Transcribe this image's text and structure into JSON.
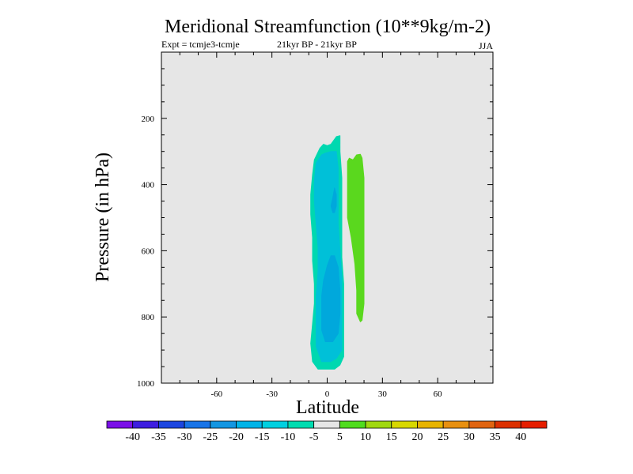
{
  "chart_data": {
    "type": "contour",
    "title": "Meridional Streamfunction (10**9kg/m-2)",
    "subtitle_left": "Expt = tcmje3-tcmje",
    "subtitle_center": "21kyr BP - 21kyr BP",
    "subtitle_right": "JJA",
    "xlabel": "Latitude",
    "ylabel": "Pressure (in hPa)",
    "xlim": [
      -90,
      90
    ],
    "ylim": [
      1000,
      0
    ],
    "x_ticks": [
      -60,
      -30,
      0,
      30,
      60
    ],
    "y_ticks": [
      200,
      400,
      600,
      800,
      1000
    ],
    "x_tick_labels": [
      "-60",
      "-30",
      "0",
      "30",
      "60"
    ],
    "y_tick_labels": [
      "200",
      "400",
      "600",
      "800",
      "1000"
    ],
    "background_color": "#e6e6e6",
    "regions": [
      {
        "level": "-10 to -5",
        "color": "#00d8b0",
        "polygon": [
          [
            -5,
            958
          ],
          [
            -8,
            935
          ],
          [
            -9,
            880
          ],
          [
            -8,
            820
          ],
          [
            -7,
            760
          ],
          [
            -7,
            700
          ],
          [
            -8,
            630
          ],
          [
            -8,
            560
          ],
          [
            -9,
            490
          ],
          [
            -9,
            430
          ],
          [
            -8,
            370
          ],
          [
            -7,
            325
          ],
          [
            -4,
            290
          ],
          [
            -2,
            278
          ],
          [
            0,
            282
          ],
          [
            2,
            278
          ],
          [
            5,
            255
          ],
          [
            7,
            252
          ],
          [
            7,
            300
          ],
          [
            8,
            380
          ],
          [
            8,
            460
          ],
          [
            8,
            540
          ],
          [
            8,
            620
          ],
          [
            9,
            700
          ],
          [
            9,
            780
          ],
          [
            9,
            860
          ],
          [
            9,
            920
          ],
          [
            7,
            945
          ],
          [
            4,
            958
          ]
        ]
      },
      {
        "level": "-15 to -10",
        "color": "#00c0d8",
        "polygon": [
          [
            -3,
            935
          ],
          [
            -6,
            890
          ],
          [
            -6,
            820
          ],
          [
            -6,
            740
          ],
          [
            -5,
            660
          ],
          [
            -5,
            590
          ],
          [
            -6,
            520
          ],
          [
            -7,
            450
          ],
          [
            -7,
            390
          ],
          [
            -6,
            335
          ],
          [
            -3,
            310
          ],
          [
            -1,
            305
          ],
          [
            2,
            300
          ],
          [
            5,
            300
          ],
          [
            6,
            350
          ],
          [
            6,
            450
          ],
          [
            6,
            520
          ],
          [
            7,
            600
          ],
          [
            8,
            680
          ],
          [
            8,
            760
          ],
          [
            8,
            840
          ],
          [
            8,
            900
          ],
          [
            5,
            925
          ],
          [
            2,
            935
          ]
        ]
      },
      {
        "level": "-20 to -15",
        "color": "#00a8dc",
        "polygon": [
          [
            -1,
            875
          ],
          [
            -3,
            840
          ],
          [
            -3,
            790
          ],
          [
            -3,
            735
          ],
          [
            -2,
            690
          ],
          [
            0,
            645
          ],
          [
            2,
            615
          ],
          [
            4,
            615
          ],
          [
            6,
            650
          ],
          [
            7,
            720
          ],
          [
            7,
            790
          ],
          [
            6,
            850
          ],
          [
            3,
            875
          ]
        ]
      },
      {
        "level": "-20 to -15",
        "color": "#00a8dc",
        "polygon": [
          [
            3,
            485
          ],
          [
            2,
            465
          ],
          [
            3,
            440
          ],
          [
            4,
            410
          ],
          [
            5,
            430
          ],
          [
            5,
            465
          ],
          [
            4,
            485
          ]
        ]
      },
      {
        "level": "10 to 15",
        "color": "#5ad81e",
        "polygon": [
          [
            11,
            330
          ],
          [
            12,
            320
          ],
          [
            14,
            325
          ],
          [
            16,
            310
          ],
          [
            18,
            308
          ],
          [
            19,
            320
          ],
          [
            20,
            380
          ],
          [
            20,
            460
          ],
          [
            20,
            560
          ],
          [
            20,
            660
          ],
          [
            20,
            760
          ],
          [
            19,
            810
          ],
          [
            18,
            815
          ],
          [
            16,
            790
          ],
          [
            16,
            720
          ],
          [
            15,
            640
          ],
          [
            13,
            560
          ],
          [
            11,
            500
          ],
          [
            11,
            430
          ],
          [
            11,
            380
          ]
        ]
      }
    ],
    "colorbar": {
      "tick_labels": [
        "-40",
        "-35",
        "-30",
        "-25",
        "-20",
        "-15",
        "-10",
        "-5",
        "5",
        "10",
        "15",
        "20",
        "25",
        "30",
        "35",
        "40"
      ],
      "colors": [
        "#7b10e8",
        "#3e1ee0",
        "#1c46e0",
        "#1874e8",
        "#1396e2",
        "#00b4e8",
        "#00d0e0",
        "#00dcb0",
        "#e6e6e6",
        "#50dc1e",
        "#a0d810",
        "#d8d800",
        "#e8b400",
        "#e89010",
        "#e06410",
        "#dc3000",
        "#e61e00"
      ]
    }
  }
}
